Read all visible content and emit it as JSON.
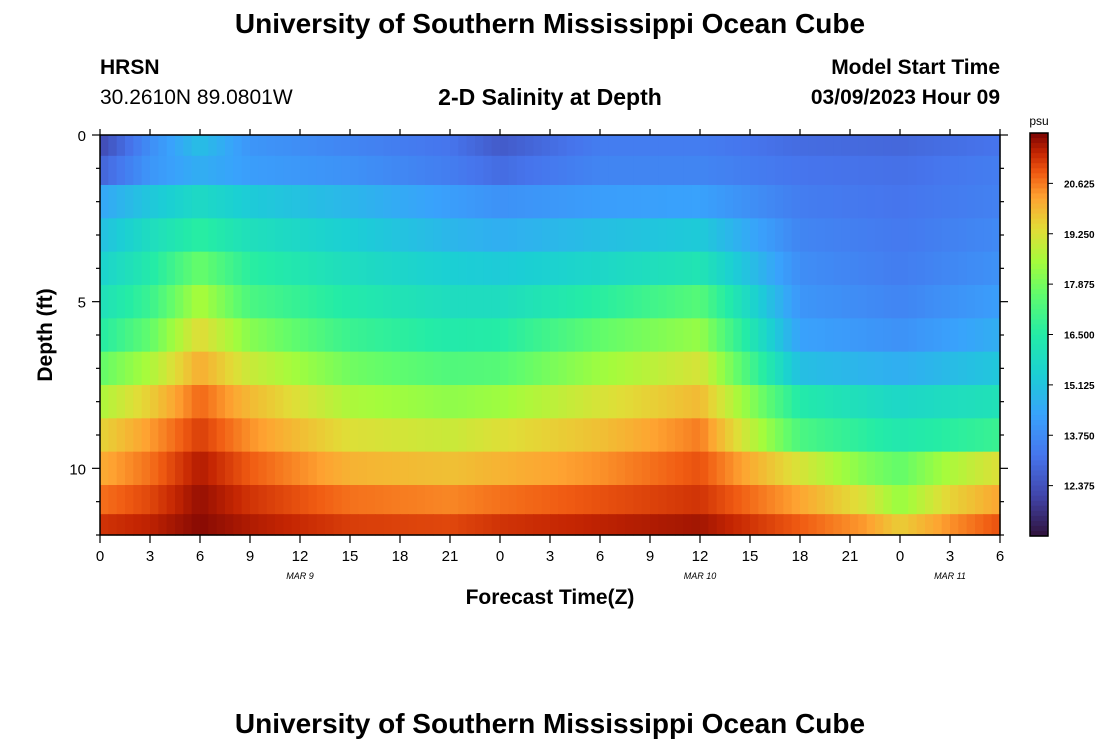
{
  "page": {
    "title": "University of Southern Mississippi Ocean Cube",
    "footer_title": "University of Southern Mississippi Ocean Cube",
    "station": "HRSN",
    "coords": "30.2610N  89.0801W",
    "plot_title": "2-D Salinity at Depth",
    "model_start_label": "Model Start Time",
    "model_start_value": "03/09/2023 Hour 09"
  },
  "chart_data": {
    "type": "heatmap",
    "title": "2-D Salinity at Depth",
    "xlabel": "Forecast Time(Z)",
    "ylabel": "Depth (ft)",
    "x_ticks": [
      "0",
      "3",
      "6",
      "9",
      "12",
      "15",
      "18",
      "21",
      "0",
      "3",
      "6",
      "9",
      "12",
      "15",
      "18",
      "21",
      "0",
      "3",
      "6"
    ],
    "x_range_hours": [
      0,
      54
    ],
    "date_labels": [
      {
        "text": "MAR 9",
        "hour": 12
      },
      {
        "text": "MAR 10",
        "hour": 36
      },
      {
        "text": "MAR 11",
        "hour": 51
      }
    ],
    "y_ticks": [
      "0",
      "5",
      "10"
    ],
    "y_range_ft": [
      0,
      12
    ],
    "depth_layers_ft": [
      0.25,
      1,
      2,
      3,
      4,
      5,
      6,
      7,
      8,
      9,
      10,
      11,
      11.75
    ],
    "colorbar": {
      "unit": "psu",
      "min": 11.0,
      "max": 22.0,
      "ticks": [
        "20.625",
        "19.250",
        "17.875",
        "16.500",
        "15.125",
        "13.750",
        "12.375"
      ],
      "tick_values": [
        20.625,
        19.25,
        17.875,
        16.5,
        15.125,
        13.75,
        12.375
      ]
    },
    "salinity_psu_by_layer": [
      {
        "depth_ft": 0.25,
        "points": [
          [
            0,
            12.2
          ],
          [
            3,
            13.8
          ],
          [
            6,
            15.0
          ],
          [
            9,
            14.0
          ],
          [
            15,
            13.6
          ],
          [
            21,
            13.2
          ],
          [
            24,
            12.6
          ],
          [
            30,
            13.4
          ],
          [
            36,
            13.4
          ],
          [
            42,
            13.0
          ],
          [
            48,
            12.9
          ],
          [
            54,
            13.2
          ]
        ]
      },
      {
        "depth_ft": 1,
        "points": [
          [
            0,
            12.8
          ],
          [
            3,
            14.0
          ],
          [
            6,
            14.6
          ],
          [
            9,
            14.2
          ],
          [
            15,
            13.9
          ],
          [
            21,
            13.4
          ],
          [
            24,
            13.0
          ],
          [
            30,
            13.6
          ],
          [
            36,
            13.6
          ],
          [
            42,
            13.2
          ],
          [
            48,
            13.1
          ],
          [
            54,
            13.4
          ]
        ]
      },
      {
        "depth_ft": 2,
        "points": [
          [
            0,
            14.4
          ],
          [
            3,
            15.2
          ],
          [
            6,
            15.8
          ],
          [
            9,
            15.3
          ],
          [
            15,
            14.8
          ],
          [
            21,
            14.2
          ],
          [
            24,
            13.9
          ],
          [
            30,
            14.2
          ],
          [
            36,
            14.3
          ],
          [
            42,
            13.4
          ],
          [
            48,
            13.2
          ],
          [
            54,
            13.5
          ]
        ]
      },
      {
        "depth_ft": 3,
        "points": [
          [
            0,
            15.0
          ],
          [
            3,
            15.9
          ],
          [
            6,
            16.6
          ],
          [
            9,
            16.0
          ],
          [
            15,
            15.4
          ],
          [
            21,
            14.8
          ],
          [
            24,
            14.6
          ],
          [
            30,
            15.0
          ],
          [
            36,
            15.3
          ],
          [
            42,
            13.6
          ],
          [
            48,
            13.3
          ],
          [
            54,
            13.7
          ]
        ]
      },
      {
        "depth_ft": 4,
        "points": [
          [
            0,
            15.5
          ],
          [
            3,
            16.4
          ],
          [
            6,
            17.7
          ],
          [
            9,
            16.6
          ],
          [
            15,
            15.9
          ],
          [
            21,
            15.4
          ],
          [
            24,
            15.3
          ],
          [
            30,
            15.7
          ],
          [
            36,
            16.2
          ],
          [
            42,
            13.8
          ],
          [
            48,
            13.4
          ],
          [
            54,
            13.9
          ]
        ]
      },
      {
        "depth_ft": 5,
        "points": [
          [
            0,
            16.0
          ],
          [
            3,
            16.9
          ],
          [
            6,
            18.6
          ],
          [
            9,
            17.2
          ],
          [
            15,
            16.4
          ],
          [
            21,
            15.9
          ],
          [
            24,
            15.9
          ],
          [
            30,
            16.6
          ],
          [
            36,
            17.4
          ],
          [
            42,
            14.0
          ],
          [
            48,
            13.6
          ],
          [
            54,
            14.2
          ]
        ]
      },
      {
        "depth_ft": 6,
        "points": [
          [
            0,
            16.5
          ],
          [
            3,
            17.6
          ],
          [
            6,
            19.4
          ],
          [
            9,
            18.1
          ],
          [
            15,
            16.9
          ],
          [
            21,
            16.4
          ],
          [
            24,
            16.5
          ],
          [
            30,
            17.6
          ],
          [
            36,
            18.3
          ],
          [
            42,
            14.3
          ],
          [
            48,
            13.9
          ],
          [
            54,
            14.6
          ]
        ]
      },
      {
        "depth_ft": 7,
        "points": [
          [
            0,
            17.6
          ],
          [
            3,
            18.6
          ],
          [
            6,
            20.1
          ],
          [
            9,
            19.0
          ],
          [
            15,
            17.8
          ],
          [
            21,
            17.3
          ],
          [
            24,
            17.4
          ],
          [
            30,
            18.4
          ],
          [
            36,
            19.2
          ],
          [
            42,
            15.0
          ],
          [
            48,
            14.6
          ],
          [
            54,
            15.2
          ]
        ]
      },
      {
        "depth_ft": 8,
        "points": [
          [
            0,
            18.6
          ],
          [
            3,
            19.6
          ],
          [
            6,
            20.8
          ],
          [
            9,
            19.9
          ],
          [
            15,
            18.6
          ],
          [
            21,
            18.2
          ],
          [
            24,
            18.4
          ],
          [
            30,
            19.2
          ],
          [
            36,
            19.9
          ],
          [
            42,
            16.4
          ],
          [
            48,
            15.7
          ],
          [
            54,
            16.1
          ]
        ]
      },
      {
        "depth_ft": 9,
        "points": [
          [
            0,
            19.5
          ],
          [
            3,
            20.3
          ],
          [
            6,
            21.2
          ],
          [
            9,
            20.4
          ],
          [
            15,
            19.3
          ],
          [
            21,
            19.0
          ],
          [
            24,
            19.3
          ],
          [
            30,
            19.8
          ],
          [
            36,
            20.6
          ],
          [
            42,
            17.2
          ],
          [
            48,
            16.3
          ],
          [
            54,
            16.9
          ]
        ]
      },
      {
        "depth_ft": 10,
        "points": [
          [
            0,
            20.1
          ],
          [
            3,
            20.7
          ],
          [
            6,
            21.6
          ],
          [
            9,
            20.9
          ],
          [
            15,
            20.0
          ],
          [
            21,
            19.8
          ],
          [
            24,
            20.0
          ],
          [
            30,
            20.4
          ],
          [
            36,
            21.0
          ],
          [
            42,
            19.2
          ],
          [
            46,
            18.0
          ],
          [
            48,
            17.6
          ],
          [
            51,
            18.6
          ],
          [
            54,
            19.3
          ]
        ]
      },
      {
        "depth_ft": 11,
        "points": [
          [
            0,
            20.7
          ],
          [
            3,
            21.1
          ],
          [
            6,
            21.8
          ],
          [
            9,
            21.3
          ],
          [
            15,
            20.7
          ],
          [
            21,
            20.5
          ],
          [
            24,
            20.7
          ],
          [
            30,
            21.0
          ],
          [
            36,
            21.3
          ],
          [
            42,
            20.2
          ],
          [
            46,
            19.2
          ],
          [
            48,
            18.3
          ],
          [
            51,
            19.5
          ],
          [
            54,
            20.2
          ]
        ]
      },
      {
        "depth_ft": 11.75,
        "points": [
          [
            0,
            21.3
          ],
          [
            3,
            21.5
          ],
          [
            6,
            21.9
          ],
          [
            9,
            21.6
          ],
          [
            15,
            21.2
          ],
          [
            21,
            21.1
          ],
          [
            24,
            21.3
          ],
          [
            30,
            21.5
          ],
          [
            36,
            21.7
          ],
          [
            42,
            20.9
          ],
          [
            46,
            20.3
          ],
          [
            48,
            19.6
          ],
          [
            51,
            20.4
          ],
          [
            54,
            21.0
          ]
        ]
      }
    ]
  }
}
